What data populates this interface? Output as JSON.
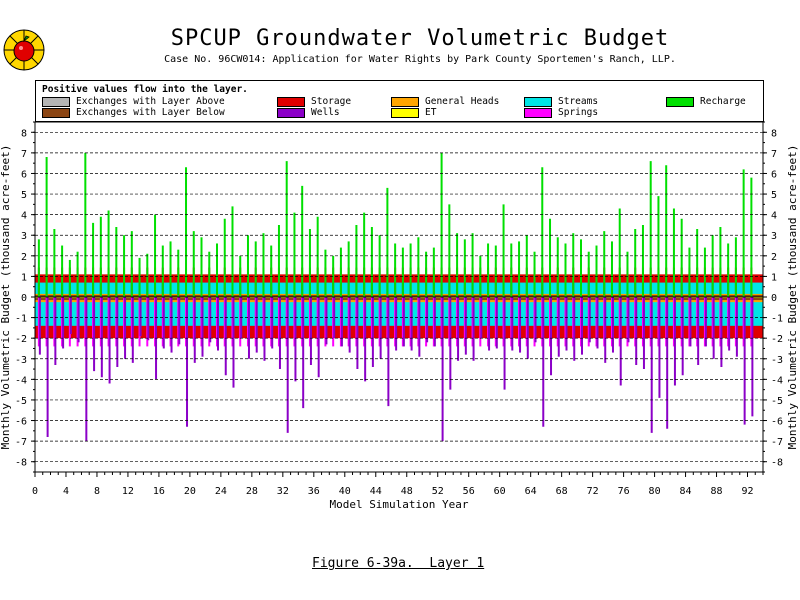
{
  "header": {
    "title": "SPCUP Groundwater Volumetric Budget",
    "subtitle": "Case No. 96CW014: Application for Water Rights by Park County Sportemen's Ranch, LLP."
  },
  "legend": {
    "note": "Positive values flow into the layer.",
    "items": [
      {
        "label": "Exchanges with Layer Above",
        "color": "#b4b4b4"
      },
      {
        "label": "Exchanges with Layer Below",
        "color": "#8b4513"
      },
      {
        "label": "Storage",
        "color": "#e00000"
      },
      {
        "label": "Wells",
        "color": "#8b00c8"
      },
      {
        "label": "General Heads",
        "color": "#ffa500"
      },
      {
        "label": "ET",
        "color": "#ffff00"
      },
      {
        "label": "Streams",
        "color": "#00e6e6"
      },
      {
        "label": "Springs",
        "color": "#ff00ff"
      },
      {
        "label": "Recharge",
        "color": "#00e000"
      }
    ]
  },
  "caption": "Figure 6-39a.  Layer 1",
  "chart_data": {
    "type": "area",
    "title": "SPCUP Groundwater Volumetric Budget",
    "xlabel": "Model Simulation Year",
    "ylabel": "Monthly Volumetric Budget (thousand acre-feet)",
    "xlim": [
      0,
      94
    ],
    "ylim": [
      -8.5,
      8.5
    ],
    "x_ticks": [
      0,
      4,
      8,
      12,
      16,
      20,
      24,
      28,
      32,
      36,
      40,
      44,
      48,
      52,
      56,
      60,
      64,
      68,
      72,
      76,
      80,
      84,
      88,
      92
    ],
    "y_ticks": [
      -8,
      -7,
      -6,
      -5,
      -4,
      -3,
      -2,
      -1,
      0,
      1,
      2,
      3,
      4,
      5,
      6,
      7,
      8
    ],
    "grid": "horizontal-dashed",
    "legend_placement": "top",
    "years": [
      1,
      2,
      3,
      4,
      5,
      6,
      7,
      8,
      9,
      10,
      11,
      12,
      13,
      14,
      15,
      16,
      17,
      18,
      19,
      20,
      21,
      22,
      23,
      24,
      25,
      26,
      27,
      28,
      29,
      30,
      31,
      32,
      33,
      34,
      35,
      36,
      37,
      38,
      39,
      40,
      41,
      42,
      43,
      44,
      45,
      46,
      47,
      48,
      49,
      50,
      51,
      52,
      53,
      54,
      55,
      56,
      57,
      58,
      59,
      60,
      61,
      62,
      63,
      64,
      65,
      66,
      67,
      68,
      69,
      70,
      71,
      72,
      73,
      74,
      75,
      76,
      77,
      78,
      79,
      80,
      81,
      82,
      83,
      84,
      85,
      86,
      87,
      88,
      89,
      90,
      91,
      92,
      93
    ],
    "series": [
      {
        "name": "Recharge",
        "peak_values": [
          2.8,
          6.8,
          3.3,
          2.5,
          1.8,
          2.2,
          7.0,
          3.6,
          3.9,
          4.2,
          3.4,
          3.0,
          3.2,
          1.9,
          2.1,
          4.0,
          2.5,
          2.7,
          2.3,
          6.3,
          3.2,
          2.9,
          2.2,
          2.6,
          3.8,
          4.4,
          2.0,
          3.0,
          2.7,
          3.1,
          2.5,
          3.5,
          6.6,
          4.1,
          5.4,
          3.3,
          3.9,
          2.3,
          2.0,
          2.4,
          2.7,
          3.5,
          4.1,
          3.4,
          3.0,
          5.3,
          2.6,
          2.4,
          2.6,
          2.9,
          2.2,
          2.4,
          7.0,
          4.5,
          3.1,
          2.8,
          3.1,
          2.0,
          2.6,
          2.5,
          4.5,
          2.6,
          2.7,
          3.0,
          2.2,
          6.3,
          3.8,
          2.9,
          2.6,
          3.1,
          2.8,
          2.2,
          2.5,
          3.2,
          2.7,
          4.3,
          2.2,
          3.3,
          3.5,
          6.6,
          4.9,
          6.4,
          4.3,
          3.8,
          2.4,
          3.3,
          2.4,
          3.0,
          3.4,
          2.6,
          2.9,
          6.2,
          5.8
        ]
      },
      {
        "name": "Wells",
        "peak_values": [
          -2.8,
          -6.8,
          -3.3,
          -2.5,
          -1.8,
          -2.2,
          -7.0,
          -3.6,
          -3.9,
          -4.2,
          -3.4,
          -3.0,
          -3.2,
          -1.9,
          -2.1,
          -4.0,
          -2.5,
          -2.7,
          -2.3,
          -6.3,
          -3.2,
          -2.9,
          -2.2,
          -2.6,
          -3.8,
          -4.4,
          -2.0,
          -3.0,
          -2.7,
          -3.1,
          -2.5,
          -3.5,
          -6.6,
          -4.1,
          -5.4,
          -3.3,
          -3.9,
          -2.3,
          -2.0,
          -2.4,
          -2.7,
          -3.5,
          -4.1,
          -3.4,
          -3.0,
          -5.3,
          -2.6,
          -2.4,
          -2.6,
          -2.9,
          -2.2,
          -2.4,
          -7.0,
          -4.5,
          -3.1,
          -2.8,
          -3.1,
          -2.0,
          -2.6,
          -2.5,
          -4.5,
          -2.6,
          -2.7,
          -3.0,
          -2.2,
          -6.3,
          -3.8,
          -2.9,
          -2.6,
          -3.1,
          -2.8,
          -2.2,
          -2.5,
          -3.2,
          -2.7,
          -4.3,
          -2.2,
          -3.3,
          -3.5,
          -6.6,
          -4.9,
          -6.4,
          -4.3,
          -3.8,
          -2.4,
          -3.3,
          -2.4,
          -3.0,
          -3.4,
          -2.6,
          -2.9,
          -6.2,
          -5.8
        ]
      },
      {
        "name": "Storage",
        "typical_in": 1.1,
        "typical_out": -2.0
      },
      {
        "name": "Streams",
        "typical_in": 0.7,
        "typical_out": -1.4
      },
      {
        "name": "General Heads",
        "typical_in": 0.15,
        "typical_out": -0.25
      },
      {
        "name": "Exchanges with Layer Below",
        "typical_in": 0.1,
        "typical_out": -0.15
      },
      {
        "name": "Exchanges with Layer Above",
        "typical_in": 0.0,
        "typical_out": 0.0
      },
      {
        "name": "ET",
        "typical_in": 0.0,
        "typical_out": -0.05
      },
      {
        "name": "Springs",
        "typical_in": 0.0,
        "typical_out": -0.95
      }
    ]
  }
}
